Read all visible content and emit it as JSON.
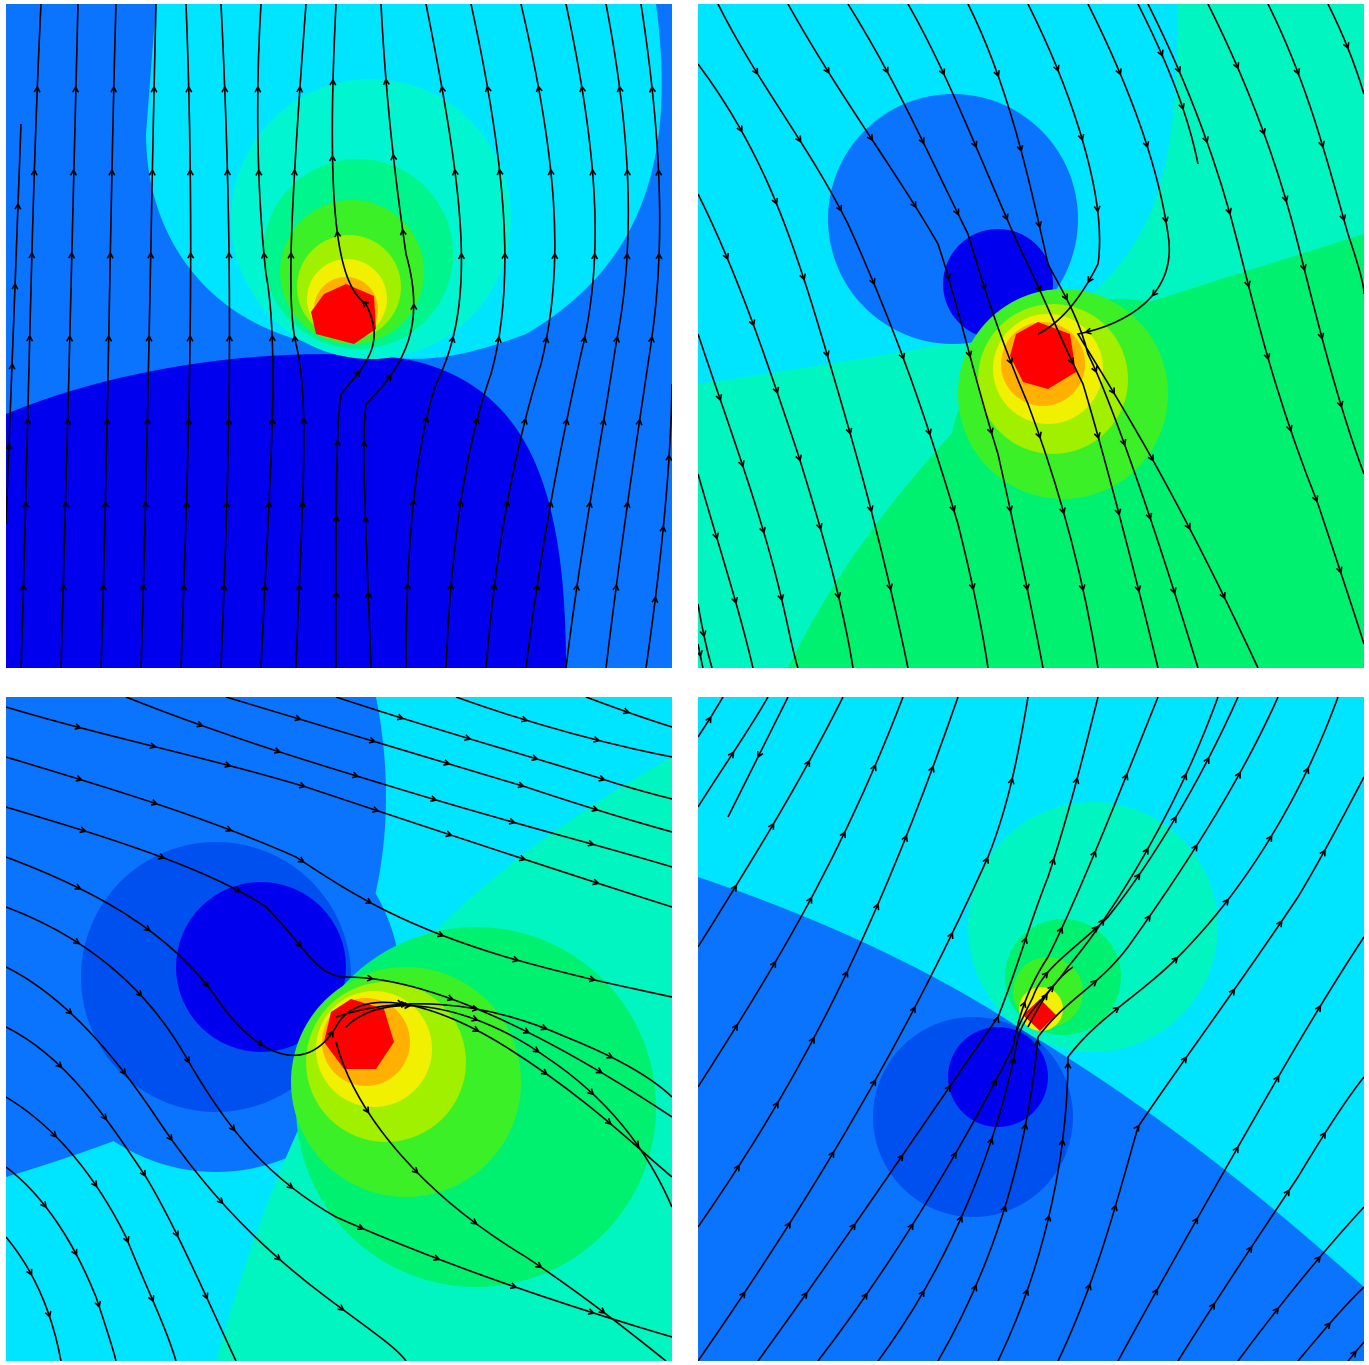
{
  "chart_data": [
    {
      "type": "heatmap",
      "panel": "top-left",
      "title": "",
      "background": "#0A74FF",
      "uniform_flow_direction": "up",
      "colors": {
        "source_half": "#00E5FF",
        "sink_half": "#0000EE",
        "ring1": "#00F5D0",
        "ring2": "#00F58C",
        "ring3": "#3CF028",
        "ring4": "#A0F000",
        "ring5": "#F0F000",
        "ring6": "#FFB000",
        "core": "#FF0000"
      },
      "streamlines": 18
    },
    {
      "type": "heatmap",
      "panel": "top-right",
      "title": "",
      "background": "#00E5FF",
      "uniform_flow_direction": "down-right",
      "colors": {
        "outer_high": "#00F5C0",
        "high_disc": "#00F070",
        "sink_ring": "#0A74FF",
        "sink_core": "#0000EE",
        "ring3": "#3CF028",
        "ring4": "#A0F000",
        "ring5": "#F0F000",
        "ring6": "#FFB000",
        "core": "#FF0000"
      },
      "streamlines": 18
    },
    {
      "type": "heatmap",
      "panel": "bottom-left",
      "title": "",
      "background": "#00E5FF",
      "uniform_flow_direction": "right-down",
      "colors": {
        "outer_low": "#0A74FF",
        "mid_low": "#0050F0",
        "sink_core": "#0000EE",
        "outer_high": "#00F5C0",
        "high_disc": "#00F070",
        "ring3": "#3CF028",
        "ring4": "#A0F000",
        "ring5": "#F0F000",
        "ring6": "#FFB000",
        "core": "#FF0000"
      },
      "streamlines": 18
    },
    {
      "type": "heatmap",
      "panel": "bottom-right",
      "title": "",
      "background": "#00E5FF",
      "uniform_flow_direction": "up-right",
      "colors": {
        "low_band": "#0A74FF",
        "sink_ring": "#0050F0",
        "sink_core": "#0000EE",
        "high_disc": "#00F5C0",
        "ring2": "#00F070",
        "ring3": "#3CF028",
        "ring5": "#F0F000",
        "core": "#FF0000"
      },
      "streamlines": 20
    }
  ]
}
